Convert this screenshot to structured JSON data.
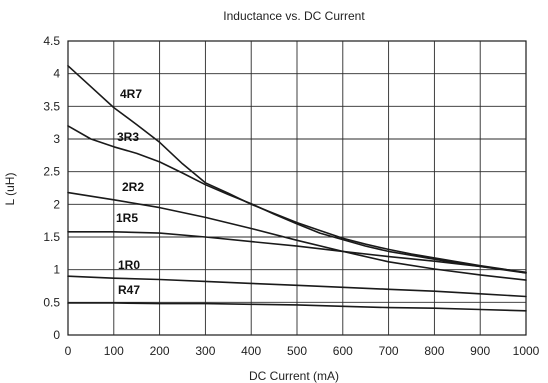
{
  "chart_data": {
    "type": "line",
    "title": "Inductance vs. DC Current",
    "xlabel": "DC Current (mA)",
    "ylabel": "L (uH)",
    "xlim": [
      0,
      1000
    ],
    "ylim": [
      0,
      4.5
    ],
    "xticks": [
      "0",
      "100",
      "200",
      "300",
      "400",
      "500",
      "600",
      "700",
      "800",
      "900",
      "1000"
    ],
    "yticks": [
      "0",
      "0.5",
      "1",
      "1.5",
      "2",
      "2.5",
      "3",
      "3.5",
      "4",
      "4.5"
    ],
    "grid": true,
    "legend": "inline labels",
    "line_color": "#1a1a1a",
    "series": [
      {
        "name": "4R7",
        "x": [
          0,
          50,
          100,
          150,
          200,
          250,
          300,
          350,
          400,
          450,
          500,
          550,
          600,
          650,
          700,
          750,
          800,
          850,
          900,
          950,
          1000
        ],
        "y": [
          4.12,
          3.8,
          3.48,
          3.22,
          2.95,
          2.62,
          2.33,
          2.17,
          2.0,
          1.86,
          1.72,
          1.6,
          1.48,
          1.39,
          1.31,
          1.24,
          1.18,
          1.12,
          1.06,
          1.01,
          0.95
        ]
      },
      {
        "name": "3R3",
        "x": [
          0,
          50,
          100,
          150,
          200,
          250,
          300,
          350,
          400,
          450,
          500,
          550,
          600,
          650,
          700,
          750,
          800,
          850,
          900,
          950,
          1000
        ],
        "y": [
          3.2,
          3.0,
          2.88,
          2.78,
          2.65,
          2.48,
          2.3,
          2.15,
          2.01,
          1.85,
          1.7,
          1.56,
          1.46,
          1.36,
          1.28,
          1.22,
          1.16,
          1.1,
          1.05,
          1.0,
          0.95
        ]
      },
      {
        "name": "2R2",
        "x": [
          0,
          100,
          200,
          300,
          400,
          500,
          600,
          700,
          800,
          900,
          1000
        ],
        "y": [
          2.18,
          2.07,
          1.95,
          1.8,
          1.63,
          1.45,
          1.28,
          1.12,
          1.01,
          0.92,
          0.84
        ]
      },
      {
        "name": "1R5",
        "x": [
          0,
          100,
          200,
          300,
          400,
          500,
          600,
          700,
          800,
          900,
          1000
        ],
        "y": [
          1.58,
          1.58,
          1.56,
          1.5,
          1.43,
          1.36,
          1.28,
          1.2,
          1.13,
          1.05,
          0.96
        ]
      },
      {
        "name": "1R0",
        "x": [
          0,
          100,
          200,
          300,
          400,
          500,
          600,
          700,
          800,
          900,
          1000
        ],
        "y": [
          0.9,
          0.87,
          0.85,
          0.82,
          0.79,
          0.76,
          0.73,
          0.7,
          0.67,
          0.63,
          0.59
        ]
      },
      {
        "name": "R47",
        "x": [
          0,
          100,
          200,
          300,
          400,
          500,
          600,
          700,
          800,
          900,
          1000
        ],
        "y": [
          0.49,
          0.49,
          0.48,
          0.48,
          0.47,
          0.46,
          0.44,
          0.42,
          0.41,
          0.39,
          0.37
        ]
      }
    ]
  }
}
